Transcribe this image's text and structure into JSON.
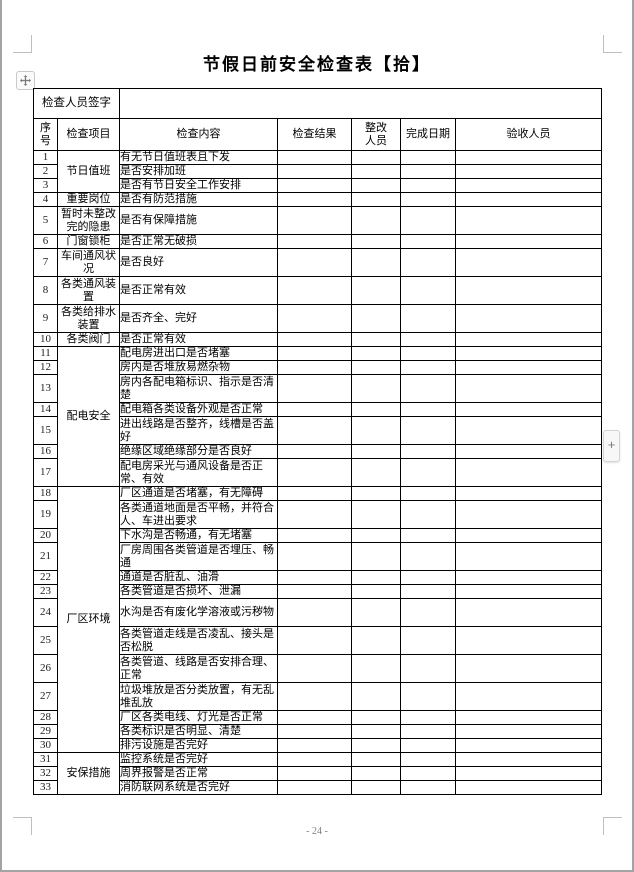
{
  "page": {
    "title": "节假日前安全检查表【拾】",
    "footer_page_number": "- 24 -"
  },
  "controls": {
    "insert_button_label": "+"
  },
  "colors": {
    "page_bg": "#ffffff",
    "canvas_bg": "#a3a3a3",
    "table_border": "#000000",
    "footer_text": "#808080",
    "margin_mark": "#bfbfbf"
  },
  "table": {
    "signature_row": {
      "label": "检查人员签字",
      "value": ""
    },
    "headers": {
      "no": "序号",
      "item": "检查项目",
      "content": "检查内容",
      "result": "检查结果",
      "rectifier": "整改人员",
      "date": "完成日期",
      "acceptor": "验收人员"
    },
    "rows": [
      {
        "no": "1",
        "item": "节日值班",
        "span": 3,
        "content": "有无节日值班表且下发",
        "tall": false
      },
      {
        "no": "2",
        "content": "是否安排加班",
        "tall": false
      },
      {
        "no": "3",
        "content": "是否有节日安全工作安排",
        "tall": false
      },
      {
        "no": "4",
        "item": "重要岗位",
        "span": 1,
        "content": "是否有防范措施",
        "tall": false
      },
      {
        "no": "5",
        "item": "暂时未整改完的隐患",
        "span": 1,
        "content": "是否有保障措施",
        "tall": true
      },
      {
        "no": "6",
        "item": "门窗锁柜",
        "span": 1,
        "content": "是否正常无破损",
        "tall": false
      },
      {
        "no": "7",
        "item": "车间通风状况",
        "span": 1,
        "content": "是否良好",
        "tall": true
      },
      {
        "no": "8",
        "item": "各类通风装置",
        "span": 1,
        "content": "是否正常有效",
        "tall": true
      },
      {
        "no": "9",
        "item": "各类给排水装置",
        "span": 1,
        "content": "是否齐全、完好",
        "tall": true
      },
      {
        "no": "10",
        "item": "各类阀门",
        "span": 1,
        "content": "是否正常有效",
        "tall": false
      },
      {
        "no": "11",
        "item": "配电安全",
        "span": 7,
        "content": "配电房进出口是否堵塞",
        "tall": false
      },
      {
        "no": "12",
        "content": "房内是否堆放易燃杂物",
        "tall": false
      },
      {
        "no": "13",
        "content": "房内各配电箱标识、指示是否清楚",
        "tall": true
      },
      {
        "no": "14",
        "content": "配电箱各类设备外观是否正常",
        "tall": false
      },
      {
        "no": "15",
        "content": "进出线路是否整齐，线槽是否盖好",
        "tall": true
      },
      {
        "no": "16",
        "content": "绝缘区域绝缘部分是否良好",
        "tall": false
      },
      {
        "no": "17",
        "content": "配电房采光与通风设备是否正常、有效",
        "tall": true
      },
      {
        "no": "18",
        "item": "厂区环境",
        "span": 13,
        "content": "厂区通道是否堵塞，有无障碍",
        "tall": false
      },
      {
        "no": "19",
        "content": "各类通道地面是否平畅，并符合人、车进出要求",
        "tall": true
      },
      {
        "no": "20",
        "content": "下水沟是否畅通，有无堵塞",
        "tall": false
      },
      {
        "no": "21",
        "content": "厂房周围各类管道是否埋压、畅通",
        "tall": true
      },
      {
        "no": "22",
        "content": "通道是否脏乱、油滑",
        "tall": false
      },
      {
        "no": "23",
        "content": "各类管道是否损坏、泄漏",
        "tall": false
      },
      {
        "no": "24",
        "content": "水沟是否有废化学溶液或污秽物",
        "tall": true
      },
      {
        "no": "25",
        "content": "各类管道走线是否凌乱、接头是否松脱",
        "tall": true
      },
      {
        "no": "26",
        "content": "各类管道、线路是否安排合理、正常",
        "tall": true
      },
      {
        "no": "27",
        "content": "垃圾堆放是否分类放置，有无乱堆乱放",
        "tall": true
      },
      {
        "no": "28",
        "content": "厂区各类电线、灯光是否正常",
        "tall": false
      },
      {
        "no": "29",
        "content": "各类标识是否明显、清楚",
        "tall": false
      },
      {
        "no": "30",
        "content": "排污设施是否完好",
        "tall": false
      },
      {
        "no": "31",
        "item": "安保措施",
        "span": 3,
        "content": "监控系统是否完好",
        "tall": false
      },
      {
        "no": "32",
        "content": "周界报警是否正常",
        "tall": false
      },
      {
        "no": "33",
        "content": "消防联网系统是否完好",
        "tall": false
      }
    ]
  }
}
